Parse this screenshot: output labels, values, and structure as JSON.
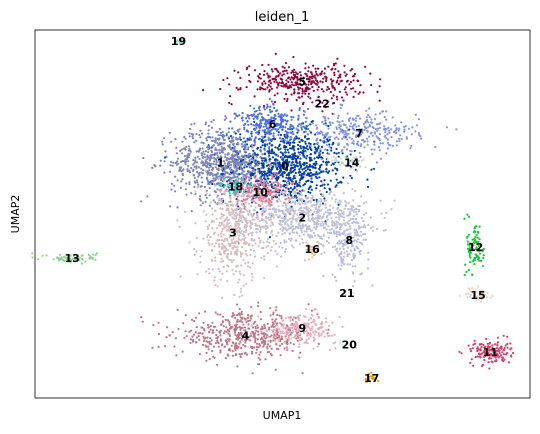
{
  "chart_data": {
    "type": "scatter",
    "title": "leiden_1",
    "xlabel": "UMAP1",
    "ylabel": "UMAP2",
    "grid": false,
    "legend": "on data",
    "xlim": [
      0,
      100
    ],
    "ylim": [
      0,
      100
    ],
    "clusters": [
      {
        "label": "0",
        "color": "#023fa5",
        "x": 50.5,
        "y": 63.0,
        "sx": 6.0,
        "sy": 5.0,
        "n": 900
      },
      {
        "label": "1",
        "color": "#7d87b9",
        "x": 37.5,
        "y": 64.0,
        "sx": 5.0,
        "sy": 5.0,
        "n": 700
      },
      {
        "label": "2",
        "color": "#bec1d4",
        "x": 54.0,
        "y": 49.0,
        "sx": 6.5,
        "sy": 4.0,
        "n": 650
      },
      {
        "label": "3",
        "color": "#d6bcc0",
        "x": 40.0,
        "y": 45.0,
        "sx": 3.5,
        "sy": 7.0,
        "n": 450
      },
      {
        "label": "4",
        "color": "#bb7784",
        "x": 42.5,
        "y": 17.0,
        "sx": 7.0,
        "sy": 3.0,
        "n": 500
      },
      {
        "label": "5",
        "color": "#8e063b",
        "x": 54.0,
        "y": 86.0,
        "sx": 6.0,
        "sy": 2.5,
        "n": 350
      },
      {
        "label": "6",
        "color": "#4a6fe3",
        "x": 48.0,
        "y": 74.5,
        "sx": 3.5,
        "sy": 2.5,
        "n": 250
      },
      {
        "label": "7",
        "color": "#8595e1",
        "x": 65.5,
        "y": 72.0,
        "sx": 6.0,
        "sy": 2.8,
        "n": 300
      },
      {
        "label": "8",
        "color": "#b5bbe3",
        "x": 63.5,
        "y": 43.0,
        "sx": 2.0,
        "sy": 5.0,
        "n": 160
      },
      {
        "label": "9",
        "color": "#e6afb9",
        "x": 54.0,
        "y": 19.0,
        "sx": 3.5,
        "sy": 2.0,
        "n": 200
      },
      {
        "label": "10",
        "color": "#e07b91",
        "x": 45.5,
        "y": 56.0,
        "sx": 3.0,
        "sy": 2.2,
        "n": 160
      },
      {
        "label": "11",
        "color": "#d33f6a",
        "x": 92.0,
        "y": 12.5,
        "sx": 2.0,
        "sy": 1.6,
        "n": 150
      },
      {
        "label": "12",
        "color": "#11c638",
        "x": 89.0,
        "y": 41.0,
        "sx": 0.9,
        "sy": 3.8,
        "n": 90
      },
      {
        "label": "13",
        "color": "#8dd593",
        "x": 7.5,
        "y": 38.0,
        "sx": 2.5,
        "sy": 0.6,
        "n": 70
      },
      {
        "label": "14",
        "color": "#c6dec7",
        "x": 64.0,
        "y": 64.0,
        "sx": 2.0,
        "sy": 1.0,
        "n": 50
      },
      {
        "label": "15",
        "color": "#ead3c6",
        "x": 89.5,
        "y": 28.0,
        "sx": 1.3,
        "sy": 1.0,
        "n": 45
      },
      {
        "label": "16",
        "color": "#f0b98d",
        "x": 56.0,
        "y": 40.5,
        "sx": 0.8,
        "sy": 1.5,
        "n": 25
      },
      {
        "label": "17",
        "color": "#ef9708",
        "x": 68.0,
        "y": 5.5,
        "sx": 0.7,
        "sy": 0.6,
        "n": 20
      },
      {
        "label": "18",
        "color": "#0fcfc0",
        "x": 40.5,
        "y": 57.5,
        "sx": 1.2,
        "sy": 1.0,
        "n": 30
      },
      {
        "label": "19",
        "color": "#9cded6",
        "x": 29.0,
        "y": 97.0,
        "sx": 0.7,
        "sy": 0.4,
        "n": 12
      },
      {
        "label": "20",
        "color": "#d5eae7",
        "x": 63.5,
        "y": 14.5,
        "sx": 0.8,
        "sy": 0.6,
        "n": 10
      },
      {
        "label": "21",
        "color": "#f3e1eb",
        "x": 63.0,
        "y": 28.5,
        "sx": 0.6,
        "sy": 0.6,
        "n": 8
      },
      {
        "label": "22",
        "color": "#f6c4e1",
        "x": 58.0,
        "y": 80.0,
        "sx": 0.7,
        "sy": 0.6,
        "n": 8
      }
    ]
  }
}
